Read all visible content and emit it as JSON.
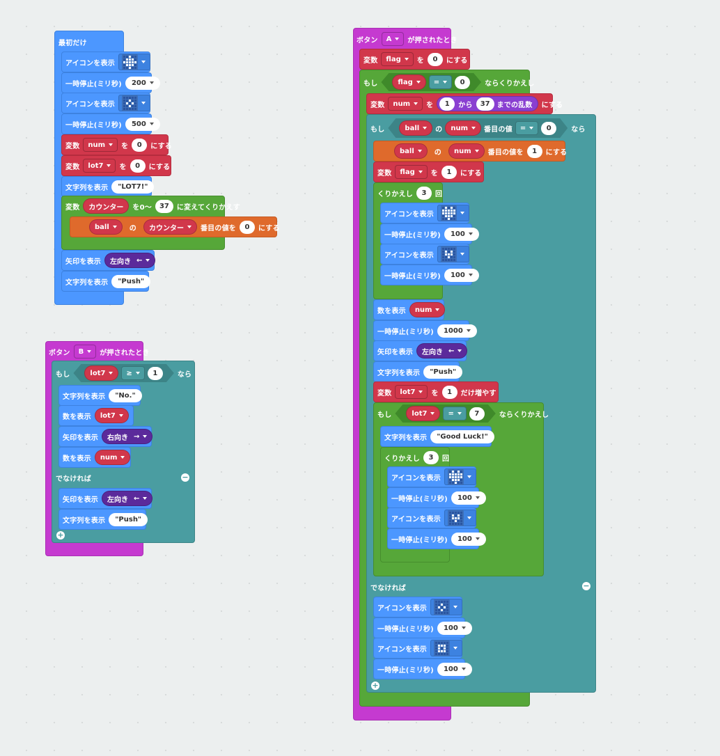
{
  "colors": {
    "blue": "#4c97ff",
    "red": "#d1374b",
    "green": "#56a739",
    "teal": "#4a9da1",
    "orange": "#df6a2c",
    "magenta": "#c53ad0",
    "purple": "#5b2a9b",
    "background": "#ecefef"
  },
  "start": {
    "hat": "最初だけ",
    "show_icon": "アイコンを表示",
    "pause": "一時停止(ミリ秒)",
    "pause_200": "200",
    "pause_500": "500",
    "var": "変数",
    "var_num": "num",
    "to": "を",
    "zero": "0",
    "set": "にする",
    "var_lot7": "lot7",
    "show_string": "文字列を表示",
    "str_lot7": "\"LOT7!\"",
    "counter": "カウンター",
    "range_from": "を0〜",
    "range_to": "37",
    "range_loop": "に変えてくりかえす",
    "ball": "ball",
    "of": "の",
    "index_value": "番目の値を",
    "show_arrow": "矢印を表示",
    "left": "左向き",
    "left_arrow": "←",
    "str_push": "\"Push\""
  },
  "button_b": {
    "hat": "ボタン",
    "button": "B",
    "pressed": "が押されたとき",
    "if": "もし",
    "lot7": "lot7",
    "ge": "≥",
    "one": "1",
    "then": "なら",
    "show_string": "文字列を表示",
    "str_no": "\"No.\"",
    "show_number": "数を表示",
    "show_arrow": "矢印を表示",
    "right": "右向き",
    "right_arrow": "→",
    "num": "num",
    "else": "でなければ",
    "left": "左向き",
    "left_arrow": "←",
    "str_push": "\"Push\""
  },
  "button_a": {
    "hat": "ボタン",
    "button": "A",
    "pressed": "が押されたとき",
    "var": "変数",
    "flag": "flag",
    "to": "を",
    "zero": "0",
    "set": "にする",
    "if": "もし",
    "eq": "=",
    "while": "ならくりかえし",
    "num": "num",
    "one": "1",
    "from": "から",
    "thirtyseven": "37",
    "random": "までの乱数",
    "ball": "ball",
    "of": "の",
    "index_value_r": "番目の値",
    "then": "なら",
    "index_value": "番目の値を",
    "repeat": "くりかえし",
    "three": "3",
    "times": "回",
    "show_icon": "アイコンを表示",
    "pause": "一時停止(ミリ秒)",
    "hundred": "100",
    "thousand": "1000",
    "show_number": "数を表示",
    "show_arrow": "矢印を表示",
    "left": "左向き",
    "left_arrow": "←",
    "show_string": "文字列を表示",
    "str_push": "\"Push\"",
    "lot7": "lot7",
    "change_by": "だけ増やす",
    "seven": "7",
    "str_good": "\"Good Luck!\"",
    "else": "でなければ"
  }
}
